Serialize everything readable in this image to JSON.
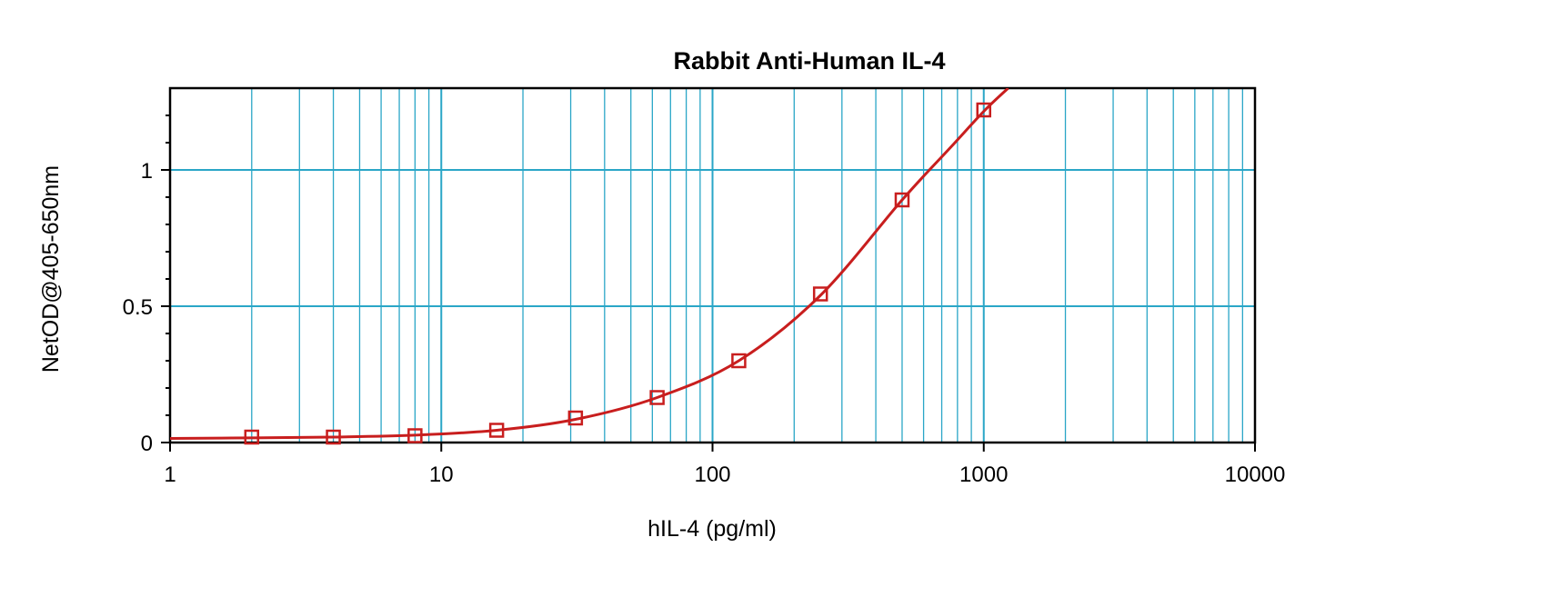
{
  "chart_data": {
    "type": "scatter",
    "title": "Rabbit Anti-Human IL-4",
    "xlabel": "hIL-4 (pg/ml)",
    "ylabel": "NetOD@405-650nm",
    "xscale": "log",
    "xlim": [
      1,
      10000
    ],
    "ylim": [
      0,
      1.3
    ],
    "x_ticks": [
      "1",
      "10",
      "100",
      "1000",
      "10000"
    ],
    "y_ticks": [
      "0",
      "0.5",
      "1"
    ],
    "grid": true,
    "legend": "none",
    "series": [
      {
        "marker": "square",
        "x": [
          2,
          4,
          8,
          16,
          31.25,
          62.5,
          125,
          250,
          500,
          1000
        ],
        "y": [
          0.02,
          0.02,
          0.025,
          0.045,
          0.09,
          0.165,
          0.3,
          0.545,
          0.89,
          1.22
        ]
      }
    ],
    "fit_curve": {
      "x": [
        1,
        2,
        4,
        8,
        16,
        31.25,
        62.5,
        125,
        250,
        500,
        750,
        1000,
        1230
      ],
      "y": [
        0.015,
        0.017,
        0.02,
        0.027,
        0.045,
        0.085,
        0.165,
        0.3,
        0.54,
        0.89,
        1.08,
        1.215,
        1.3
      ]
    },
    "colors": {
      "grid": "#2aa6c7",
      "series": "#c81e1e",
      "axes": "#000000"
    }
  }
}
